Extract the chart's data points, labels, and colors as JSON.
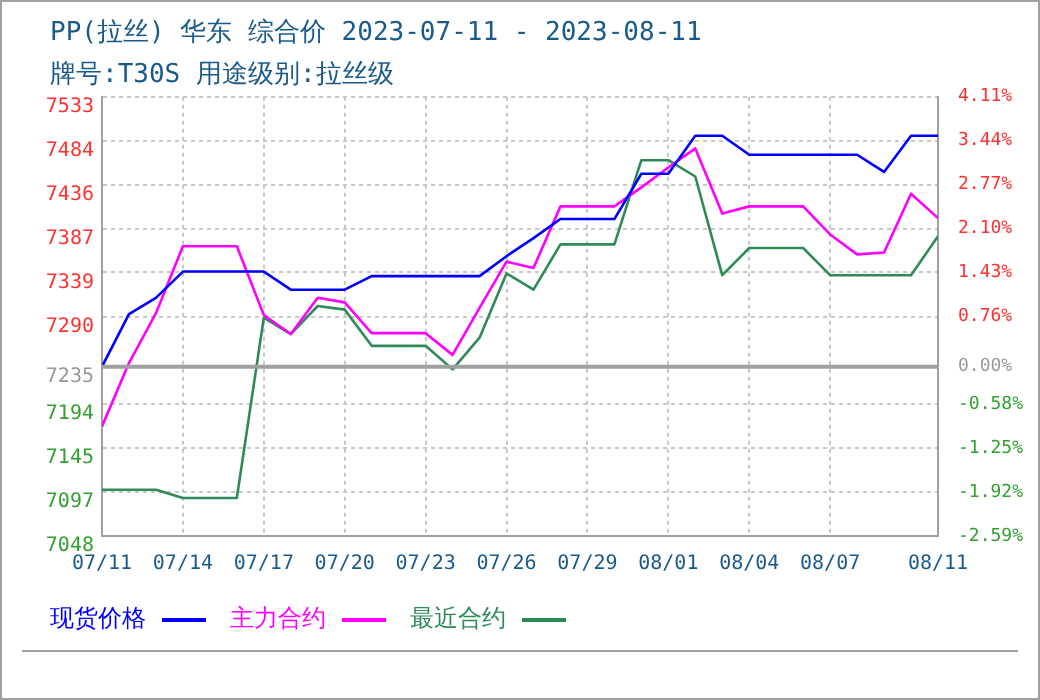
{
  "chart_data": {
    "type": "line",
    "title": "PP(拉丝) 华东 综合价 2023-07-11 - 2023-08-11",
    "subtitle": "牌号:T30S 用途级别:拉丝级",
    "x": [
      "2023-07-11",
      "2023-07-12",
      "2023-07-13",
      "2023-07-14",
      "2023-07-15",
      "2023-07-16",
      "2023-07-17",
      "2023-07-18",
      "2023-07-19",
      "2023-07-20",
      "2023-07-21",
      "2023-07-22",
      "2023-07-23",
      "2023-07-24",
      "2023-07-25",
      "2023-07-26",
      "2023-07-27",
      "2023-07-28",
      "2023-07-29",
      "2023-07-30",
      "2023-07-31",
      "2023-08-01",
      "2023-08-02",
      "2023-08-03",
      "2023-08-04",
      "2023-08-05",
      "2023-08-06",
      "2023-08-07",
      "2023-08-08",
      "2023-08-09",
      "2023-08-10",
      "2023-08-11"
    ],
    "series": [
      {
        "name": "现货价格",
        "color": "#0000ff",
        "values": [
          7235,
          7293,
          7311,
          7340,
          7340,
          7340,
          7340,
          7320,
          7320,
          7320,
          7335,
          7335,
          7335,
          7335,
          7335,
          7357,
          7377,
          7398,
          7398,
          7398,
          7448,
          7448,
          7490,
          7490,
          7469,
          7469,
          7469,
          7469,
          7469,
          7450,
          7490,
          7490
        ]
      },
      {
        "name": "主力合约",
        "color": "#ff00ff",
        "values": [
          7169,
          7239,
          7294,
          7368,
          7368,
          7368,
          7292,
          7271,
          7311,
          7306,
          7272,
          7272,
          7272,
          7248,
          7300,
          7351,
          7344,
          7412,
          7412,
          7412,
          7433,
          7455,
          7476,
          7404,
          7412,
          7412,
          7412,
          7381,
          7359,
          7361,
          7426,
          7399
        ]
      },
      {
        "name": "最近合约",
        "color": "#2e8b57",
        "values": [
          7099,
          7099,
          7099,
          7090,
          7090,
          7090,
          7289,
          7271,
          7302,
          7298,
          7258,
          7258,
          7258,
          7232,
          7267,
          7338,
          7320,
          7370,
          7370,
          7370,
          7463,
          7463,
          7445,
          7336,
          7366,
          7366,
          7366,
          7336,
          7336,
          7336,
          7336,
          7379
        ]
      }
    ],
    "xlim": [
      "2023-07-11",
      "2023-08-11"
    ],
    "xticks": [
      {
        "value": "2023-07-11",
        "label": "07/11"
      },
      {
        "value": "2023-07-14",
        "label": "07/14"
      },
      {
        "value": "2023-07-17",
        "label": "07/17"
      },
      {
        "value": "2023-07-20",
        "label": "07/20"
      },
      {
        "value": "2023-07-23",
        "label": "07/23"
      },
      {
        "value": "2023-07-26",
        "label": "07/26"
      },
      {
        "value": "2023-07-29",
        "label": "07/29"
      },
      {
        "value": "2023-08-01",
        "label": "08/01"
      },
      {
        "value": "2023-08-04",
        "label": "08/04"
      },
      {
        "value": "2023-08-07",
        "label": "08/07"
      },
      {
        "value": "2023-08-11",
        "label": "08/11"
      }
    ],
    "ylim": [
      7048,
      7533
    ],
    "yticks": [
      7048,
      7097,
      7145,
      7194,
      7235,
      7290,
      7339,
      7387,
      7436,
      7484,
      7533
    ],
    "y2lim": [
      -2.59,
      4.11
    ],
    "y2ticks": [
      {
        "value": -2.59,
        "label": "-2.59%"
      },
      {
        "value": -1.92,
        "label": "-1.92%"
      },
      {
        "value": -1.25,
        "label": "-1.25%"
      },
      {
        "value": -0.58,
        "label": "-0.58%"
      },
      {
        "value": 0,
        "label": "0.00%"
      },
      {
        "value": 0.76,
        "label": "0.76%"
      },
      {
        "value": 1.43,
        "label": "1.43%"
      },
      {
        "value": 2.1,
        "label": "2.10%"
      },
      {
        "value": 2.77,
        "label": "2.77%"
      },
      {
        "value": 3.44,
        "label": "3.44%"
      },
      {
        "value": 4.11,
        "label": "4.11%"
      }
    ],
    "ref_lines": [
      {
        "axis": "y",
        "value": 7235,
        "color": "#a0a0a0"
      }
    ],
    "grid": true,
    "legend": "bottom",
    "marker": "none",
    "line_style": "solid"
  }
}
